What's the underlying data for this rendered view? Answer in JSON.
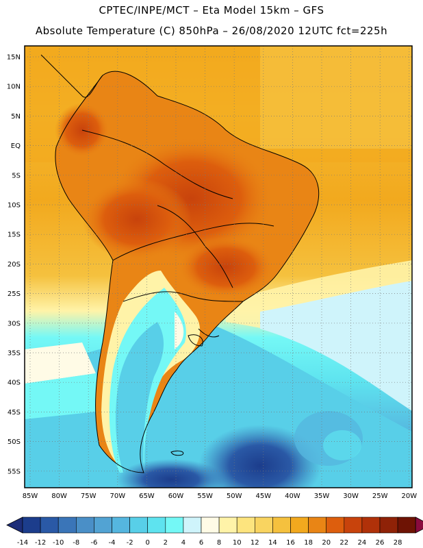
{
  "header": {
    "line1": "CPTEC/INPE/MCT –  Eta Model 15km – GFS",
    "line2": "Absolute Temperature (C) 850hPa – 26/08/2020 12UTC fct=225h"
  },
  "map": {
    "lat_labels": [
      "15N",
      "10N",
      "5N",
      "EQ",
      "5S",
      "10S",
      "15S",
      "20S",
      "25S",
      "30S",
      "35S",
      "40S",
      "45S",
      "50S",
      "55S"
    ],
    "lon_labels": [
      "85W",
      "80W",
      "75W",
      "70W",
      "65W",
      "60W",
      "55W",
      "50W",
      "45W",
      "40W",
      "35W",
      "30W",
      "25W",
      "20W"
    ]
  },
  "colorbar": {
    "labels": [
      "-14",
      "-12",
      "-10",
      "-8",
      "-6",
      "-4",
      "-2",
      "0",
      "2",
      "4",
      "6",
      "8",
      "10",
      "12",
      "14",
      "16",
      "18",
      "20",
      "22",
      "24",
      "26",
      "28"
    ],
    "colors": [
      "#1c3d8c",
      "#2a59a6",
      "#3a75b8",
      "#4a8fc7",
      "#52a3d3",
      "#55b6df",
      "#58cfe8",
      "#5ee3ef",
      "#74f8f6",
      "#cff4fb",
      "#fffbe6",
      "#fff3a8",
      "#fde47e",
      "#f9d460",
      "#f5c13e",
      "#f2a91e",
      "#e98515",
      "#dd5e0d",
      "#c8430c",
      "#b03109",
      "#8f2207",
      "#6e1304"
    ],
    "under_color": "#1d2d79",
    "over_color": "#8a0b3e"
  }
}
